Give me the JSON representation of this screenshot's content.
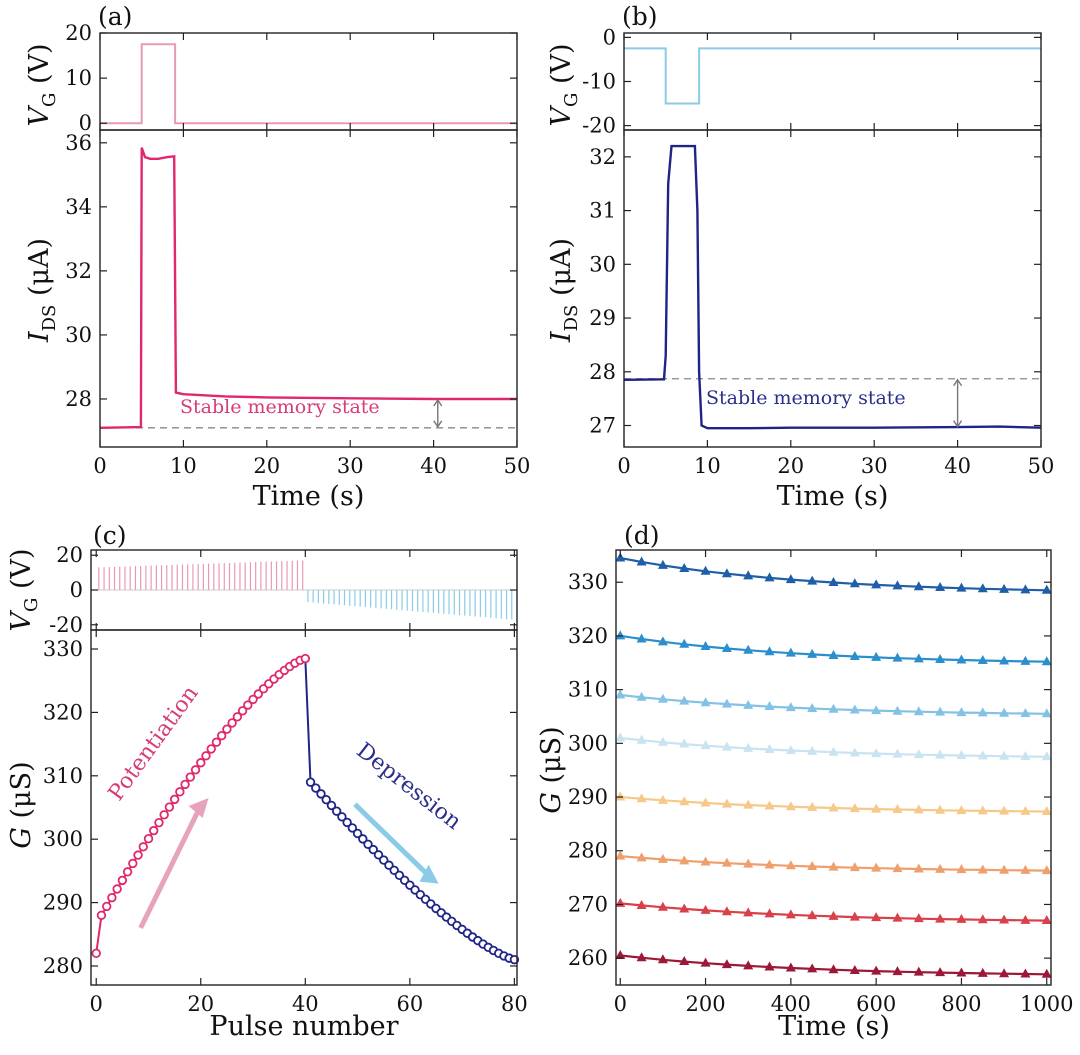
{
  "figure": {
    "panel_labels": [
      "(a)",
      "(b)",
      "(c)",
      "(d)"
    ],
    "colors": {
      "pink": "#e0286e",
      "light_pink": "#e79ab6",
      "navy": "#1f2488",
      "light_blue": "#8ccbe6",
      "dashed": "#888888",
      "text_pink": "#d63c7a",
      "text_navy": "#2b2f8a"
    }
  },
  "chart_data": [
    {
      "id": "a",
      "type": "line",
      "panel_label": "(a)",
      "xlabel": "Time (s)",
      "xlim": [
        0,
        50
      ],
      "xticks": [
        0,
        10,
        20,
        30,
        40,
        50
      ],
      "top": {
        "ylabel_main": "V",
        "ylabel_sub": "G",
        "ylabel_unit": "(V)",
        "ylim": [
          -1.5,
          20
        ],
        "yticks": [
          0,
          10,
          20
        ],
        "series": [
          {
            "name": "VG",
            "x": [
              0,
              5,
              5,
              9,
              9,
              50
            ],
            "y": [
              0,
              0,
              17.5,
              17.5,
              0,
              0
            ]
          }
        ]
      },
      "bottom": {
        "ylabel_main": "I",
        "ylabel_sub": "DS",
        "ylabel_unit": "(μA)",
        "ylim": [
          26.5,
          36.4
        ],
        "yticks": [
          28,
          30,
          32,
          34,
          36
        ],
        "series": [
          {
            "name": "IDS",
            "x": [
              0,
              4.9,
              5,
              5.4,
              6,
              7,
              8,
              8.9,
              9.1,
              10,
              15,
              20,
              30,
              40,
              50
            ],
            "y": [
              27.1,
              27.12,
              35.85,
              35.55,
              35.5,
              35.5,
              35.55,
              35.58,
              28.2,
              28.15,
              28.08,
              28.05,
              28.02,
              28.0,
              28.0
            ]
          }
        ],
        "baseline": 27.1,
        "annotation": {
          "text": "Stable memory state",
          "x": 40.5,
          "y_from": 27.1,
          "y_to": 28.0
        }
      }
    },
    {
      "id": "b",
      "type": "line",
      "panel_label": "(b)",
      "xlabel": "Time (s)",
      "xlim": [
        0,
        50
      ],
      "xticks": [
        0,
        10,
        20,
        30,
        40,
        50
      ],
      "top": {
        "ylabel_main": "V",
        "ylabel_sub": "G",
        "ylabel_unit": "(V)",
        "ylim": [
          -21,
          1
        ],
        "yticks": [
          0,
          -10,
          -20
        ],
        "series": [
          {
            "name": "VG",
            "x": [
              0,
              5,
              5,
              9,
              9,
              50
            ],
            "y": [
              -2.5,
              -2.5,
              -15,
              -15,
              -2.5,
              -2.5
            ]
          }
        ]
      },
      "bottom": {
        "ylabel_main": "I",
        "ylabel_sub": "DS",
        "ylabel_unit": "(μA)",
        "ylim": [
          26.6,
          32.5
        ],
        "yticks": [
          27,
          28,
          29,
          30,
          31,
          32
        ],
        "series": [
          {
            "name": "IDS",
            "x": [
              0,
              4.8,
              5,
              5.3,
              5.7,
              7,
              8.5,
              8.8,
              9,
              9.3,
              10,
              15,
              20,
              30,
              40,
              45,
              50
            ],
            "y": [
              27.85,
              27.86,
              28.3,
              31.5,
              32.2,
              32.2,
              32.2,
              31.0,
              28.0,
              27.0,
              26.95,
              26.95,
              26.96,
              26.96,
              26.97,
              26.98,
              26.96
            ]
          }
        ],
        "baseline": 27.87,
        "annotation": {
          "text": "Stable memory state",
          "x": 40,
          "y_from": 27.87,
          "y_to": 26.96
        }
      }
    },
    {
      "id": "c",
      "type": "scatter",
      "panel_label": "(c)",
      "xlabel": "Pulse number",
      "xlim": [
        -1,
        80.5
      ],
      "xticks": [
        0,
        20,
        40,
        60,
        80
      ],
      "top": {
        "ylabel_main": "V",
        "ylabel_sub": "G",
        "ylabel_unit": "(V)",
        "ylim": [
          -23,
          23
        ],
        "yticks": [
          20,
          0,
          -20
        ],
        "pulses": {
          "potentiation_count": 40,
          "potentiation_from": 13,
          "potentiation_to": 17,
          "depression_count": 40,
          "depression_from": -7,
          "depression_to": -17
        }
      },
      "bottom": {
        "ylabel_main": "G",
        "ylabel_unit": "(μS)",
        "ylim": [
          277,
          333
        ],
        "yticks": [
          280,
          290,
          300,
          310,
          320,
          330
        ],
        "potentiation": {
          "name": "Potentiation",
          "start_value": 282,
          "first_step": 288,
          "end_value": 328.5
        },
        "depression": {
          "name": "Depression",
          "first_value": 309,
          "end_value": 281
        }
      },
      "arrow_labels": {
        "potentiation": "Potentiation",
        "depression": "Depression"
      }
    },
    {
      "id": "d",
      "type": "line",
      "panel_label": "(d)",
      "xlabel": "Time (s)",
      "xlim": [
        -10,
        1010
      ],
      "xticks": [
        0,
        200,
        400,
        600,
        800,
        1000
      ],
      "ylabel_main": "G",
      "ylabel_unit": "(μS)",
      "ylim": [
        255,
        336
      ],
      "yticks": [
        260,
        270,
        280,
        290,
        300,
        310,
        320,
        330
      ],
      "series": [
        {
          "name": "s1",
          "start": 334.5,
          "end": 328.5,
          "color": "#1f5fa8"
        },
        {
          "name": "s2",
          "start": 320,
          "end": 315.2,
          "color": "#2b8fce"
        },
        {
          "name": "s3",
          "start": 309,
          "end": 305.5,
          "color": "#84c2e5"
        },
        {
          "name": "s4",
          "start": 301,
          "end": 297.5,
          "color": "#c9e3f0"
        },
        {
          "name": "s5",
          "start": 290,
          "end": 287.3,
          "color": "#f6c988"
        },
        {
          "name": "s6",
          "start": 279,
          "end": 276.3,
          "color": "#ef9f6c"
        },
        {
          "name": "s7",
          "start": 270.2,
          "end": 267,
          "color": "#d8404a"
        },
        {
          "name": "s8",
          "start": 260.5,
          "end": 257,
          "color": "#9c1836"
        }
      ]
    }
  ]
}
